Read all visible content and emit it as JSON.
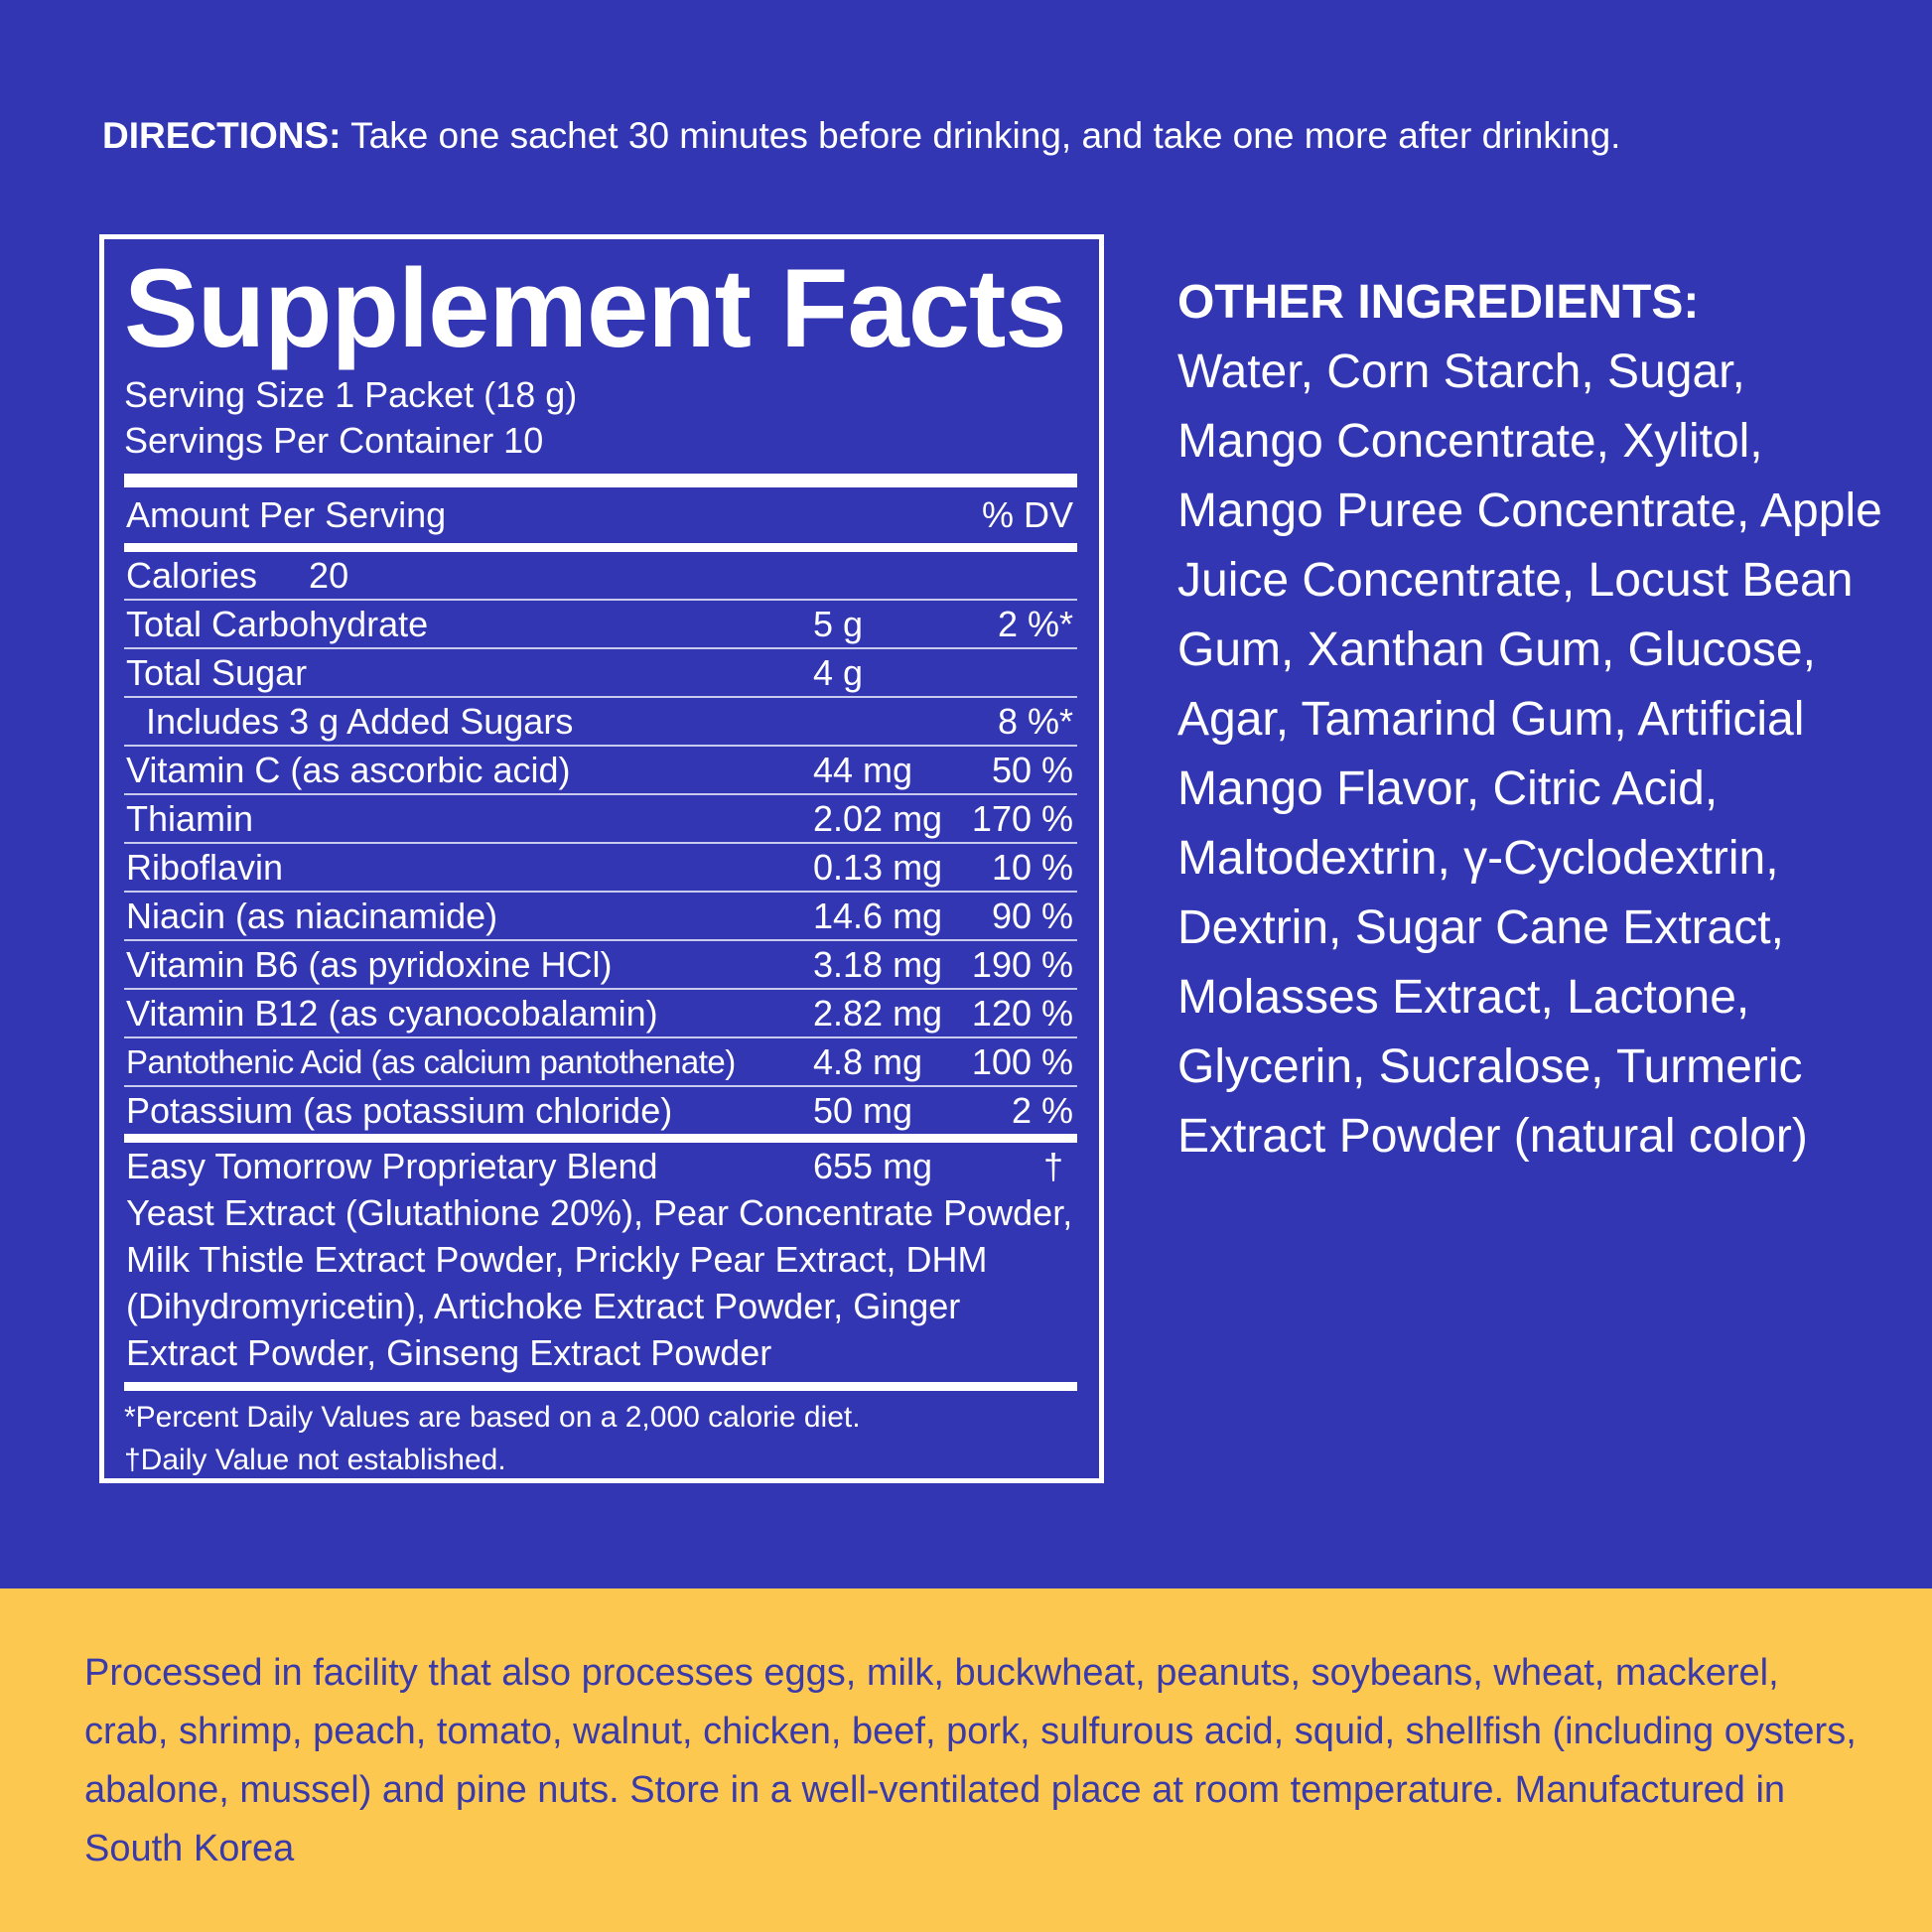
{
  "directions": {
    "label": "DIRECTIONS:",
    "text": "Take one sachet 30 minutes before drinking, and take one more after drinking."
  },
  "facts": {
    "title": "Supplement Facts",
    "serving_size": "Serving Size 1 Packet (18 g)",
    "servings_per_container": "Servings Per Container 10",
    "amount_header": "Amount Per Serving",
    "dv_header": "% DV",
    "calories_label": "Calories",
    "calories_value": "20",
    "rows": [
      {
        "name": "Total Carbohydrate",
        "amount": "5 g",
        "dv": "2 %*"
      },
      {
        "name": "Total Sugar",
        "amount": "4 g",
        "dv": ""
      },
      {
        "name": "Includes 3 g Added Sugars",
        "amount": "",
        "dv": "8 %*"
      },
      {
        "name": "Vitamin C (as ascorbic acid)",
        "amount": "44 mg",
        "dv": "50 %"
      },
      {
        "name": "Thiamin",
        "amount": "2.02 mg",
        "dv": "170 %"
      },
      {
        "name": "Riboflavin",
        "amount": "0.13 mg",
        "dv": "10 %"
      },
      {
        "name": "Niacin (as niacinamide)",
        "amount": "14.6 mg",
        "dv": "90 %"
      },
      {
        "name": "Vitamin B6 (as pyridoxine HCl)",
        "amount": "3.18 mg",
        "dv": "190 %"
      },
      {
        "name": "Vitamin B12 (as cyanocobalamin)",
        "amount": "2.82 mg",
        "dv": "120 %"
      },
      {
        "name": "Pantothenic Acid (as calcium pantothenate)",
        "amount": "4.8 mg",
        "dv": "100 %"
      },
      {
        "name": "Potassium (as potassium chloride)",
        "amount": "50 mg",
        "dv": "2 %"
      }
    ],
    "blend": {
      "name": "Easy Tomorrow Proprietary Blend",
      "amount": "655 mg",
      "dv": "†",
      "ingredients": "Yeast Extract (Glutathione 20%), Pear Concentrate Powder, Milk Thistle Extract Powder, Prickly Pear Extract, DHM (Dihydromyricetin), Artichoke Extract Powder, Ginger Extract Powder, Ginseng Extract Powder"
    },
    "footnote_1": "*Percent Daily Values are based on a 2,000 calorie diet.",
    "footnote_2": "†Daily Value not established."
  },
  "other_ingredients": {
    "title": "OTHER INGREDIENTS:",
    "text": "Water, Corn Starch, Sugar, Mango Concentrate, Xylitol, Mango Puree Concentrate, Apple Juice Concentrate, Locust Bean Gum, Xanthan Gum, Glucose, Agar, Tamarind Gum, Artificial Mango Flavor, Citric Acid, Maltodextrin, γ-Cyclodextrin, Dextrin, Sugar Cane Extract, Molasses Extract, Lactone, Glycerin, Sucralose, Turmeric Extract Powder (natural color)"
  },
  "notice": {
    "text": "Processed in facility that also processes eggs, milk, buckwheat, peanuts, soybeans, wheat, mackerel, crab, shrimp, peach, tomato, walnut, chicken, beef, pork, sulfurous acid, squid, shellfish (including oysters, abalone, mussel) and pine nuts. Store in a well-ventilated place at room temperature. Manufactured in South Korea"
  },
  "colors": {
    "background": "#3236b3",
    "notice_background": "#fdc84f",
    "notice_text": "#3a3aa8"
  }
}
